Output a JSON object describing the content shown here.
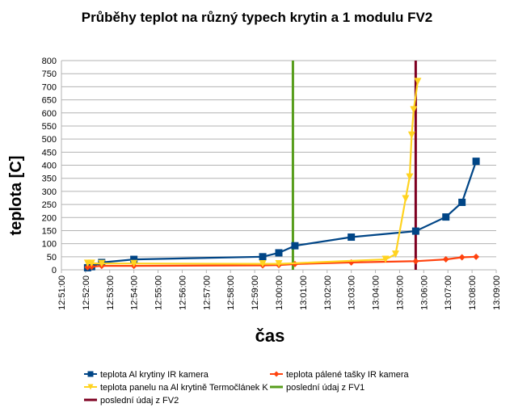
{
  "chart_data": {
    "type": "line",
    "title": "Průběhy teplot na různý typech krytin a 1 modulu FV2",
    "xlabel": "čas",
    "ylabel": "teplota [C]",
    "xlim": [
      "12:51:00",
      "13:09:00"
    ],
    "ylim": [
      0,
      800
    ],
    "y_ticks": [
      0,
      50,
      100,
      150,
      200,
      250,
      300,
      350,
      400,
      450,
      500,
      550,
      600,
      650,
      700,
      750,
      800
    ],
    "x_ticks": [
      "12:51:00",
      "12:52:00",
      "12:53:00",
      "12:54:00",
      "12:55:00",
      "12:56:00",
      "12:57:00",
      "12:58:00",
      "12:59:00",
      "13:00:00",
      "13:01:00",
      "13:02:00",
      "13:03:00",
      "13:04:00",
      "13:05:00",
      "13:06:00",
      "13:07:00",
      "13:08:00",
      "13:09:00"
    ],
    "grid": "horizontal",
    "legend_position": "bottom",
    "series": [
      {
        "name": "teplota Al krytiny IR kamera",
        "color": "#004586",
        "marker": "square",
        "points": [
          [
            "12:52:05",
            8
          ],
          [
            "12:52:15",
            12
          ],
          [
            "12:52:40",
            28
          ],
          [
            "12:54:00",
            40
          ],
          [
            "12:59:20",
            50
          ],
          [
            "13:00:00",
            65
          ],
          [
            "13:00:40",
            92
          ],
          [
            "13:03:00",
            125
          ],
          [
            "13:05:40",
            148
          ],
          [
            "13:06:55",
            202
          ],
          [
            "13:07:35",
            258
          ],
          [
            "13:08:10",
            415
          ]
        ]
      },
      {
        "name": "teplota pálené tašky IR kamera",
        "color": "#ff420e",
        "marker": "diamond",
        "points": [
          [
            "12:52:05",
            10
          ],
          [
            "12:52:15",
            12
          ],
          [
            "12:52:40",
            15
          ],
          [
            "12:54:00",
            15
          ],
          [
            "12:59:20",
            17
          ],
          [
            "13:00:00",
            18
          ],
          [
            "13:00:40",
            22
          ],
          [
            "13:03:00",
            28
          ],
          [
            "13:05:40",
            33
          ],
          [
            "13:06:55",
            40
          ],
          [
            "13:07:35",
            48
          ],
          [
            "13:08:10",
            50
          ]
        ]
      },
      {
        "name": "teplota panelu na Al krytině Termočlánek K",
        "color": "#ffd320",
        "marker": "triangle-down",
        "points": [
          [
            "12:52:05",
            25
          ],
          [
            "12:52:15",
            25
          ],
          [
            "12:52:40",
            24
          ],
          [
            "12:54:00",
            24
          ],
          [
            "12:59:20",
            23
          ],
          [
            "13:00:00",
            23
          ],
          [
            "13:04:25",
            40
          ],
          [
            "13:04:50",
            60
          ],
          [
            "13:05:15",
            272
          ],
          [
            "13:05:25",
            355
          ],
          [
            "13:05:30",
            515
          ],
          [
            "13:05:35",
            612
          ],
          [
            "13:05:45",
            720
          ]
        ]
      }
    ],
    "vertical_lines": [
      {
        "name": "poslední údaj z FV1",
        "color": "#579d1c",
        "x": "13:00:35"
      },
      {
        "name": "poslední údaj z FV2",
        "color": "#7e0021",
        "x": "13:05:40"
      }
    ]
  }
}
